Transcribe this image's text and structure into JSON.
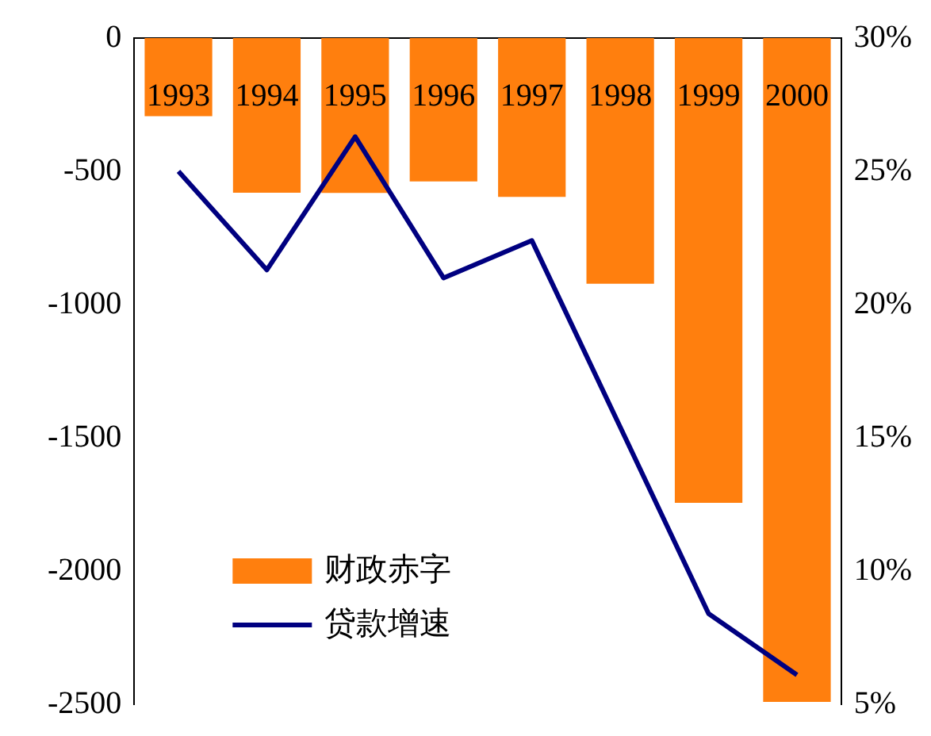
{
  "chart_data": {
    "type": "bar",
    "categories": [
      "1993",
      "1994",
      "1995",
      "1996",
      "1997",
      "1998",
      "1999",
      "2000"
    ],
    "series": [
      {
        "name": "财政赤字",
        "color": "#ff7f0e",
        "values": [
          -293,
          -580,
          -581,
          -538,
          -596,
          -922,
          -1744,
          -2491
        ]
      },
      {
        "name": "贷款增速",
        "type": "line",
        "axis": "y2",
        "color": "#000080",
        "values": [
          25.0,
          21.3,
          26.3,
          21.0,
          22.4,
          15.4,
          8.4,
          6.1
        ]
      }
    ],
    "ylim": [
      -2500,
      0
    ],
    "yticks": [
      -2500,
      -2000,
      -1500,
      -1000,
      -500,
      0
    ],
    "y2lim": [
      5,
      30
    ],
    "y2ticks": [
      {
        "value": 5,
        "label": "5%"
      },
      {
        "value": 10,
        "label": "10%"
      },
      {
        "value": 15,
        "label": "15%"
      },
      {
        "value": 20,
        "label": "20%"
      },
      {
        "value": 25,
        "label": "25%"
      },
      {
        "value": 30,
        "label": "30%"
      }
    ],
    "grid": false,
    "legend": "bottom left",
    "marker": "none",
    "line_style": "solid"
  }
}
